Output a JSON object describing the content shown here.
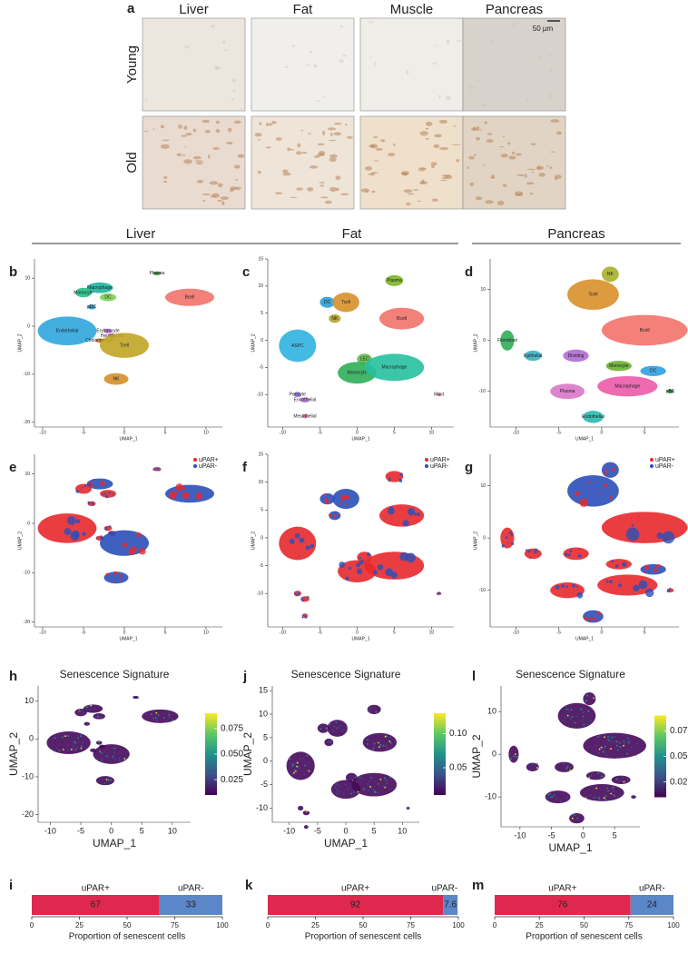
{
  "panel_a": {
    "label": "a",
    "columns": [
      "Liver",
      "Fat",
      "Muscle",
      "Pancreas"
    ],
    "rows": [
      "Young",
      "Old"
    ],
    "scale_bar": "50 µm"
  },
  "tissue_headers": [
    "Liver",
    "Fat",
    "Pancreas"
  ],
  "umap_panels": [
    {
      "label": "b",
      "x_label": "UMAP_1",
      "y_label": "UMAP_2",
      "xlim": [
        -11,
        12
      ],
      "ylim": [
        -21,
        14
      ],
      "xticks": [
        -10,
        -5,
        0,
        5,
        10
      ],
      "yticks": [
        10,
        0,
        -10,
        -20
      ],
      "clusters": [
        {
          "name": "Plasma",
          "color": "#3a9a3a"
        },
        {
          "name": "Macrophage",
          "color": "#1bb5a0"
        },
        {
          "name": "Monocyte",
          "color": "#22c08a"
        },
        {
          "name": "DC",
          "color": "#7ccf54"
        },
        {
          "name": "Bcell",
          "color": "#f2726a"
        },
        {
          "name": "pDC",
          "color": "#2b8fc0"
        },
        {
          "name": "Endothelial",
          "color": "#2fa6de"
        },
        {
          "name": "Erythrocyte",
          "color": "#b56fd0"
        },
        {
          "name": "Hepatocyte",
          "color": "#e060a0"
        },
        {
          "name": "Cholangiocyte",
          "color": "#e38a3a"
        },
        {
          "name": "Tcell",
          "color": "#c1a526"
        },
        {
          "name": "NK",
          "color": "#d4902a"
        }
      ]
    },
    {
      "label": "c",
      "x_label": "UMAP_1",
      "y_label": "UMAP_2",
      "xlim": [
        -12,
        13
      ],
      "ylim": [
        -16,
        15
      ],
      "xticks": [
        -10,
        -5,
        0,
        5,
        10
      ],
      "yticks": [
        15,
        10,
        5,
        0,
        -5,
        -10
      ],
      "clusters": [
        {
          "name": "Plasma",
          "color": "#7bb526"
        },
        {
          "name": "DC",
          "color": "#2a9fd6"
        },
        {
          "name": "Tcell",
          "color": "#d8902a"
        },
        {
          "name": "NK",
          "color": "#b8a12a"
        },
        {
          "name": "Bcell",
          "color": "#f2726a"
        },
        {
          "name": "ASPC",
          "color": "#2fb3e0"
        },
        {
          "name": "LEC",
          "color": "#5cb84a"
        },
        {
          "name": "Monocyte",
          "color": "#2fae5a"
        },
        {
          "name": "Macrophage",
          "color": "#26c0a0"
        },
        {
          "name": "Pericyte",
          "color": "#8a78d0"
        },
        {
          "name": "Endothelial",
          "color": "#c07ad8"
        },
        {
          "name": "Mesothelial",
          "color": "#e070b0"
        },
        {
          "name": "Mast",
          "color": "#ee80a0"
        }
      ]
    },
    {
      "label": "d",
      "x_label": "UMAP_1",
      "y_label": "UMAP_2",
      "xlim": [
        -13,
        9
      ],
      "ylim": [
        -17,
        16
      ],
      "xticks": [
        -10,
        -5,
        0,
        5
      ],
      "yticks": [
        10,
        0,
        -10
      ],
      "clusters": [
        {
          "name": "NK",
          "color": "#a9b02a"
        },
        {
          "name": "Tcell",
          "color": "#d8902a"
        },
        {
          "name": "Bcell",
          "color": "#f2726a"
        },
        {
          "name": "Fibroblast",
          "color": "#2fae5a"
        },
        {
          "name": "Epithelial",
          "color": "#3ab0c0"
        },
        {
          "name": "Dividing",
          "color": "#b06ad0"
        },
        {
          "name": "Monocyte",
          "color": "#6ab030"
        },
        {
          "name": "DC",
          "color": "#2f9fe0"
        },
        {
          "name": "Macrophage",
          "color": "#ec5aa8"
        },
        {
          "name": "Plasma",
          "color": "#d878c8"
        },
        {
          "name": "pBC",
          "color": "#2a8a3a"
        },
        {
          "name": "Endothelial",
          "color": "#2ab8b0"
        }
      ]
    },
    {
      "label": "e",
      "x_label": "UMAP_1",
      "y_label": "UMAP_2",
      "xlim": [
        -11,
        12
      ],
      "ylim": [
        -21,
        14
      ],
      "xticks": [
        -10,
        -5,
        0,
        5,
        10
      ],
      "yticks": [
        10,
        0,
        -10,
        -20
      ],
      "legend": [
        {
          "name": "uPAR+",
          "color": "#e8282c"
        },
        {
          "name": "uPAR-",
          "color": "#2a4fb8"
        }
      ]
    },
    {
      "label": "f",
      "x_label": "UMAP_1",
      "y_label": "UMAP_2",
      "xlim": [
        -12,
        13
      ],
      "ylim": [
        -16,
        15
      ],
      "xticks": [
        -10,
        -5,
        0,
        5,
        10
      ],
      "yticks": [
        15,
        10,
        5,
        0,
        -5,
        -10
      ],
      "legend": [
        {
          "name": "uPAR+",
          "color": "#e8282c"
        },
        {
          "name": "uPAR-",
          "color": "#2a4fb8"
        }
      ]
    },
    {
      "label": "g",
      "x_label": "UMAP_1",
      "y_label": "UMAP_2",
      "xlim": [
        -13,
        9
      ],
      "ylim": [
        -17,
        16
      ],
      "xticks": [
        -10,
        -5,
        0,
        5
      ],
      "yticks": [
        10,
        0,
        -10
      ],
      "legend": [
        {
          "name": "uPAR+",
          "color": "#e8282c"
        },
        {
          "name": "uPAR-",
          "color": "#2a4fb8"
        }
      ]
    }
  ],
  "signature_panels": [
    {
      "label": "h",
      "title": "Senescence Signature",
      "x_label": "UMAP_1",
      "y_label": "UMAP_2",
      "xlim": [
        -12,
        13
      ],
      "ylim": [
        -22,
        14
      ],
      "xticks": [
        -10,
        -5,
        0,
        5,
        10
      ],
      "yticks": [
        10,
        0,
        -10,
        -20
      ],
      "colorbar_lim": [
        0.01,
        0.09
      ],
      "colorbar_ticks": [
        0.075,
        {
          "value": 0.05,
          "label": "0.050"
        },
        0.025
      ]
    },
    {
      "label": "j",
      "title": "Senescence Signature",
      "x_label": "UMAP_1",
      "y_label": "UMAP_2",
      "xlim": [
        -13,
        13
      ],
      "ylim": [
        -13,
        16
      ],
      "xticks": [
        -10,
        -5,
        0,
        5,
        10
      ],
      "yticks": [
        15,
        10,
        5,
        0,
        -5,
        -10
      ],
      "colorbar_lim": [
        0.01,
        0.13
      ],
      "colorbar_ticks": [
        {
          "value": 0.1,
          "label": "0.10"
        },
        0.05
      ]
    },
    {
      "label": "l",
      "title": "Senescence Signature",
      "x_label": "UMAP_1",
      "y_label": "UMAP_2",
      "xlim": [
        -13,
        9
      ],
      "ylim": [
        -17,
        16
      ],
      "xticks": [
        -10,
        -5,
        0,
        5
      ],
      "yticks": [
        10,
        0,
        -10
      ],
      "colorbar_lim": [
        0.01,
        0.09
      ],
      "colorbar_ticks": [
        0.075,
        {
          "value": 0.05,
          "label": "0.050"
        },
        0.025
      ]
    }
  ],
  "bar_panels": [
    {
      "label": "i",
      "type": "bar",
      "x_label": "Proportion of senescent cells",
      "xlim": [
        0,
        100
      ],
      "xticks": [
        0,
        25,
        50,
        75,
        100
      ],
      "series": [
        {
          "name": "uPAR+",
          "color": "#e0284e",
          "values": [
            67
          ]
        },
        {
          "name": "uPAR-",
          "color": "#5b86c8",
          "values": [
            33
          ]
        }
      ]
    },
    {
      "label": "k",
      "type": "bar",
      "x_label": "Proportion of senescent cells",
      "xlim": [
        0,
        100
      ],
      "xticks": [
        0,
        25,
        50,
        75,
        100
      ],
      "series": [
        {
          "name": "uPAR+",
          "color": "#e0284e",
          "values": [
            92
          ]
        },
        {
          "name": "uPAR-",
          "color": "#5b86c8",
          "values": [
            7.6
          ]
        }
      ]
    },
    {
      "label": "m",
      "type": "bar",
      "x_label": "Proportion of senescent cells",
      "xlim": [
        0,
        100
      ],
      "xticks": [
        0,
        25,
        50,
        75,
        100
      ],
      "series": [
        {
          "name": "uPAR+",
          "color": "#e0284e",
          "values": [
            76
          ]
        },
        {
          "name": "uPAR-",
          "color": "#5b86c8",
          "values": [
            24
          ]
        }
      ]
    }
  ]
}
